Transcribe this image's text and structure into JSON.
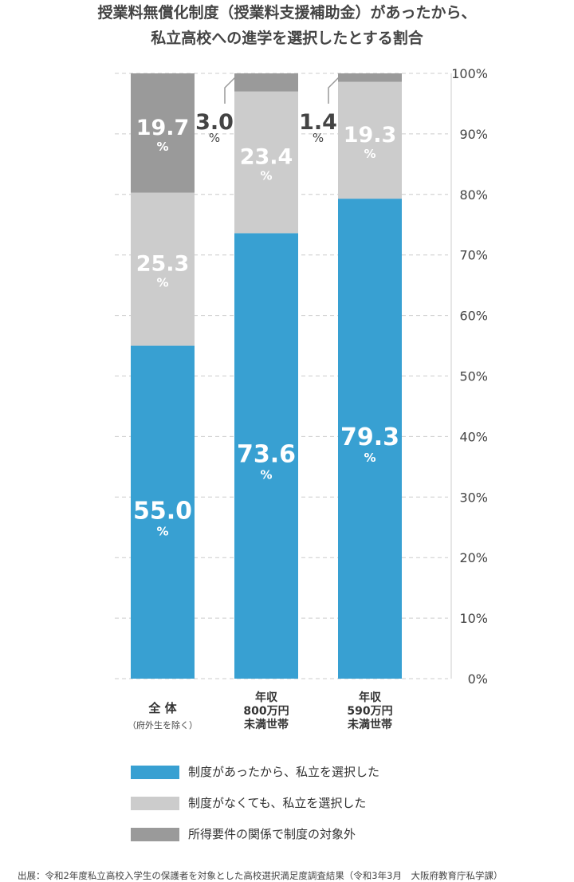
{
  "title": {
    "line1": "授業料無償化制度（授業料支援補助金）があったから、",
    "line2": "私立高校への進学を選択したとする割合"
  },
  "colors": {
    "blue": "#38a0d2",
    "light_gray": "#cccccc",
    "dark_gray": "#9a9a9a",
    "grid": "#cccccc",
    "value_text_on_bar": "#ffffff",
    "value_text_outside": "#444444"
  },
  "chart_data": {
    "type": "bar",
    "stacked": true,
    "categories": [
      [
        "全 体",
        "（府外生を除く）"
      ],
      [
        "年収",
        "800万円",
        "未満世帯"
      ],
      [
        "年収",
        "590万円",
        "未満世帯"
      ]
    ],
    "series": [
      {
        "name": "制度があったから、私立を選択した",
        "color": "#38a0d2",
        "values": [
          55.0,
          73.6,
          79.3
        ],
        "labels": [
          "55.0",
          "73.6",
          "79.3"
        ]
      },
      {
        "name": "制度がなくても、私立を選択した",
        "color": "#cccccc",
        "values": [
          25.3,
          23.4,
          19.3
        ],
        "labels": [
          "25.3",
          "23.4",
          "19.3"
        ]
      },
      {
        "name": "所得要件の関係で制度の対象外",
        "color": "#9a9a9a",
        "values": [
          19.7,
          3.0,
          1.4
        ],
        "labels": [
          "19.7",
          "3.0",
          "1.4"
        ]
      }
    ],
    "unit": "%",
    "ylim": [
      0,
      100
    ],
    "yticks": [
      "0%",
      "10%",
      "20%",
      "30%",
      "40%",
      "50%",
      "60%",
      "70%",
      "80%",
      "90%",
      "100%"
    ],
    "grid": true,
    "legend_position": "bottom"
  },
  "source": "出展：令和2年度私立高校入学生の保護者を対象とした高校選択満足度調査結果（令和3年3月　大阪府教育庁私学課）"
}
